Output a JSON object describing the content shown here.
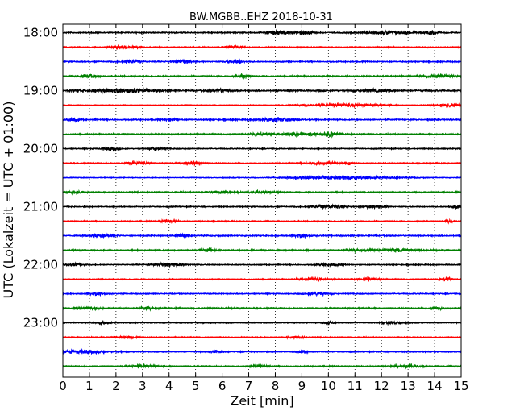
{
  "chart_data": {
    "type": "line",
    "title": "BW.MGBB..EHZ 2018-10-31",
    "xlabel": "Zeit  [min]",
    "ylabel": "UTC (Lokalzeit = UTC + 01:00)",
    "xlim": [
      0,
      15
    ],
    "x_ticks": [
      "0",
      "1",
      "2",
      "3",
      "4",
      "5",
      "6",
      "7",
      "8",
      "9",
      "10",
      "11",
      "12",
      "13",
      "14",
      "15"
    ],
    "y_tick_labels": [
      "18:00",
      "19:00",
      "20:00",
      "21:00",
      "22:00",
      "23:00"
    ],
    "grid": "vertical dotted",
    "trace_colors": [
      "#000000",
      "#ff0000",
      "#0000ff",
      "#008000"
    ],
    "series": [
      {
        "start": "18:00",
        "level": 0.55,
        "bursts": [
          [
            8.1,
            0.4,
            2.0
          ],
          [
            9.1,
            0.35,
            1.6
          ],
          [
            12.3,
            0.8,
            1.6
          ],
          [
            13.9,
            0.2,
            1.8
          ]
        ]
      },
      {
        "start": "18:15",
        "level": 0.45,
        "bursts": [
          [
            6.5,
            0.3,
            1.7
          ],
          [
            2.3,
            0.5,
            1.2
          ]
        ]
      },
      {
        "start": "18:30",
        "level": 0.5,
        "bursts": [
          [
            4.5,
            0.3,
            2.0
          ],
          [
            6.5,
            0.3,
            1.6
          ],
          [
            2.6,
            0.4,
            1.2
          ]
        ]
      },
      {
        "start": "18:45",
        "level": 0.55,
        "bursts": [
          [
            1.0,
            0.3,
            1.8
          ],
          [
            6.7,
            0.3,
            1.4
          ],
          [
            14.2,
            0.6,
            1.4
          ]
        ]
      },
      {
        "start": "19:00",
        "level": 0.7,
        "bursts": [
          [
            2.1,
            1.2,
            1.9
          ],
          [
            5.9,
            0.4,
            1.3
          ],
          [
            11.7,
            0.6,
            1.3
          ]
        ]
      },
      {
        "start": "19:15",
        "level": 0.3,
        "bursts": [
          [
            10.5,
            1.4,
            1.5
          ],
          [
            14.5,
            0.5,
            2.0
          ]
        ]
      },
      {
        "start": "19:30",
        "level": 0.6,
        "bursts": [
          [
            8.1,
            0.6,
            1.9
          ],
          [
            0.4,
            0.2,
            1.5
          ],
          [
            4.1,
            0.2,
            1.4
          ]
        ]
      },
      {
        "start": "19:45",
        "level": 0.5,
        "bursts": [
          [
            9.0,
            1.2,
            1.6
          ],
          [
            7.3,
            0.2,
            1.8
          ],
          [
            10.1,
            0.2,
            1.8
          ]
        ]
      },
      {
        "start": "20:00",
        "level": 0.45,
        "bursts": [
          [
            1.8,
            0.3,
            1.5
          ],
          [
            3.5,
            0.3,
            1.5
          ]
        ]
      },
      {
        "start": "20:15",
        "level": 0.45,
        "bursts": [
          [
            2.8,
            0.4,
            1.6
          ],
          [
            4.9,
            0.4,
            1.5
          ],
          [
            9.8,
            0.6,
            1.4
          ],
          [
            10.8,
            0.05,
            2.4
          ]
        ]
      },
      {
        "start": "20:30",
        "level": 0.35,
        "bursts": [
          [
            10.5,
            1.8,
            1.6
          ]
        ]
      },
      {
        "start": "20:45",
        "level": 0.5,
        "bursts": [
          [
            0.5,
            0.3,
            1.5
          ],
          [
            6.0,
            0.5,
            1.2
          ],
          [
            7.5,
            0.4,
            1.4
          ]
        ]
      },
      {
        "start": "21:00",
        "level": 0.45,
        "bursts": [
          [
            10.0,
            0.6,
            1.7
          ],
          [
            11.8,
            0.4,
            1.3
          ],
          [
            14.8,
            0.2,
            1.6
          ]
        ]
      },
      {
        "start": "21:15",
        "level": 0.45,
        "bursts": [
          [
            4.0,
            0.3,
            1.6
          ],
          [
            14.6,
            0.2,
            1.4
          ]
        ]
      },
      {
        "start": "21:30",
        "level": 0.55,
        "bursts": [
          [
            1.4,
            0.4,
            1.6
          ],
          [
            9.0,
            0.3,
            1.6
          ],
          [
            4.5,
            0.2,
            1.4
          ]
        ]
      },
      {
        "start": "21:45",
        "level": 0.55,
        "bursts": [
          [
            5.5,
            0.3,
            1.4
          ],
          [
            12.5,
            0.8,
            1.4
          ],
          [
            11.0,
            0.3,
            1.2
          ]
        ]
      },
      {
        "start": "22:00",
        "level": 0.45,
        "bursts": [
          [
            0.4,
            0.3,
            1.5
          ],
          [
            4.0,
            0.6,
            1.5
          ],
          [
            10.0,
            0.4,
            1.3
          ]
        ]
      },
      {
        "start": "22:15",
        "level": 0.4,
        "bursts": [
          [
            9.5,
            0.5,
            1.5
          ],
          [
            14.4,
            0.2,
            1.8
          ],
          [
            11.5,
            0.4,
            1.3
          ]
        ]
      },
      {
        "start": "22:30",
        "level": 0.45,
        "bursts": [
          [
            1.3,
            0.3,
            1.5
          ],
          [
            9.6,
            0.4,
            1.3
          ]
        ]
      },
      {
        "start": "22:45",
        "level": 0.55,
        "bursts": [
          [
            1.0,
            0.4,
            1.4
          ],
          [
            3.2,
            0.3,
            1.3
          ],
          [
            14.1,
            0.2,
            1.6
          ]
        ]
      },
      {
        "start": "23:00",
        "level": 0.4,
        "bursts": [
          [
            1.5,
            0.3,
            1.3
          ],
          [
            10.0,
            0.2,
            1.6
          ],
          [
            12.4,
            0.4,
            1.3
          ]
        ]
      },
      {
        "start": "23:15",
        "level": 0.4,
        "bursts": [
          [
            2.3,
            0.4,
            1.3
          ],
          [
            8.8,
            0.3,
            1.3
          ]
        ]
      },
      {
        "start": "23:30",
        "level": 0.45,
        "bursts": [
          [
            0.7,
            0.9,
            1.7
          ],
          [
            9.0,
            0.2,
            1.9
          ],
          [
            5.8,
            0.2,
            1.4
          ]
        ]
      },
      {
        "start": "23:45",
        "level": 0.5,
        "bursts": [
          [
            3.0,
            0.4,
            1.3
          ],
          [
            7.4,
            0.3,
            1.3
          ],
          [
            13.0,
            0.5,
            1.3
          ]
        ]
      }
    ]
  }
}
